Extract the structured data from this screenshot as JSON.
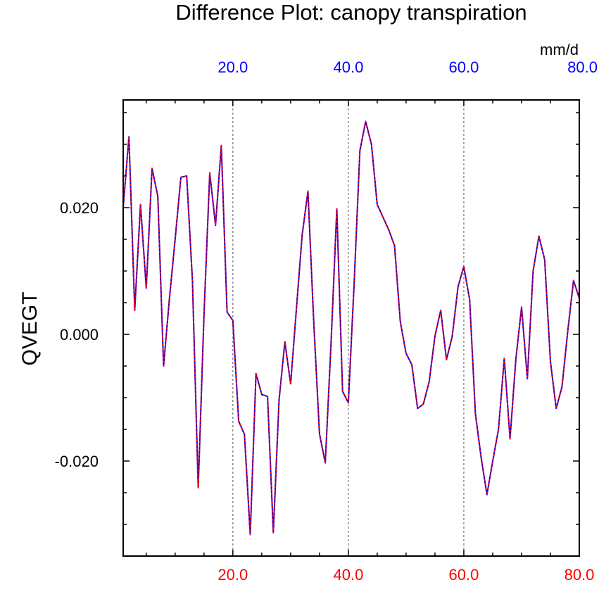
{
  "chart_data": {
    "type": "line",
    "title": "Difference Plot: canopy transpiration",
    "ylabel": "QVEGT",
    "units": "mm/d",
    "xlim": [
      1,
      80
    ],
    "ylim": [
      -0.035,
      0.037
    ],
    "grid": "vertical dashed lines at major x ticks",
    "x_ticks_top": {
      "values": [
        20,
        40,
        60,
        80
      ],
      "labels": [
        "20.0",
        "40.0",
        "60.0",
        "80.0"
      ],
      "color": "#0000ff"
    },
    "x_ticks_bottom": {
      "values": [
        20,
        40,
        60,
        80
      ],
      "labels": [
        "20.0",
        "40.0",
        "60.0",
        "80.0"
      ],
      "color": "#ff0000"
    },
    "y_ticks": {
      "values": [
        -0.02,
        0.0,
        0.02
      ],
      "labels": [
        "-0.020",
        "0.000",
        "0.020"
      ]
    },
    "x": [
      1,
      2,
      3,
      4,
      5,
      6,
      7,
      8,
      9,
      10,
      11,
      12,
      13,
      14,
      15,
      16,
      17,
      18,
      19,
      20,
      21,
      22,
      23,
      24,
      25,
      26,
      27,
      28,
      29,
      30,
      31,
      32,
      33,
      34,
      35,
      36,
      37,
      38,
      39,
      40,
      41,
      42,
      43,
      44,
      45,
      46,
      47,
      48,
      49,
      50,
      51,
      52,
      53,
      54,
      55,
      56,
      57,
      58,
      59,
      60,
      61,
      62,
      63,
      64,
      65,
      66,
      67,
      68,
      69,
      70,
      71,
      72,
      73,
      74,
      75,
      76,
      77,
      78,
      79,
      80
    ],
    "series": [
      {
        "color": "#0000ff",
        "dash": "solid",
        "values": [
          0.02,
          0.0312,
          0.0038,
          0.0205,
          0.0073,
          0.0262,
          0.0218,
          -0.005,
          0.0055,
          0.015,
          0.0248,
          0.025,
          0.0085,
          -0.0242,
          0.003,
          0.0255,
          0.0172,
          0.0298,
          0.0035,
          0.0022,
          -0.0137,
          -0.0158,
          -0.0316,
          -0.0062,
          -0.0095,
          -0.0098,
          -0.0313,
          -0.0103,
          -0.0012,
          -0.0078,
          0.004,
          0.0157,
          0.0226,
          0.002,
          -0.0157,
          -0.0203,
          -0.0015,
          0.0198,
          -0.009,
          -0.0108,
          0.008,
          0.029,
          0.0336,
          0.03,
          0.0205,
          0.0185,
          0.0165,
          0.014,
          0.002,
          -0.003,
          -0.0048,
          -0.0117,
          -0.011,
          -0.0075,
          -0.0003,
          0.0038,
          -0.004,
          -0.0003,
          0.0075,
          0.0107,
          0.0055,
          -0.0125,
          -0.0195,
          -0.0253,
          -0.02,
          -0.015,
          -0.0038,
          -0.0165,
          -0.004,
          0.0043,
          -0.007,
          0.01,
          0.0155,
          0.0118,
          -0.0043,
          -0.0117,
          -0.0083,
          0.0005,
          0.0085,
          0.0057
        ]
      },
      {
        "color": "#ff0000",
        "dash": "dashed",
        "values": [
          0.02,
          0.0312,
          0.0038,
          0.0205,
          0.0073,
          0.0262,
          0.0218,
          -0.005,
          0.0055,
          0.015,
          0.0248,
          0.025,
          0.0085,
          -0.0242,
          0.003,
          0.0255,
          0.0172,
          0.0298,
          0.0035,
          0.0022,
          -0.0137,
          -0.0158,
          -0.0316,
          -0.0062,
          -0.0095,
          -0.0098,
          -0.0313,
          -0.0103,
          -0.0012,
          -0.0078,
          0.004,
          0.0157,
          0.0226,
          0.002,
          -0.0157,
          -0.0203,
          -0.0015,
          0.0198,
          -0.009,
          -0.0108,
          0.008,
          0.029,
          0.0336,
          0.03,
          0.0205,
          0.0185,
          0.0165,
          0.014,
          0.002,
          -0.003,
          -0.0048,
          -0.0117,
          -0.011,
          -0.0075,
          -0.0003,
          0.0038,
          -0.004,
          -0.0003,
          0.0075,
          0.0107,
          0.0055,
          -0.0125,
          -0.0195,
          -0.0253,
          -0.02,
          -0.015,
          -0.0038,
          -0.0165,
          -0.004,
          0.0043,
          -0.007,
          0.01,
          0.0155,
          0.0118,
          -0.0043,
          -0.0117,
          -0.0083,
          0.0005,
          0.0085,
          0.0057
        ]
      }
    ]
  }
}
